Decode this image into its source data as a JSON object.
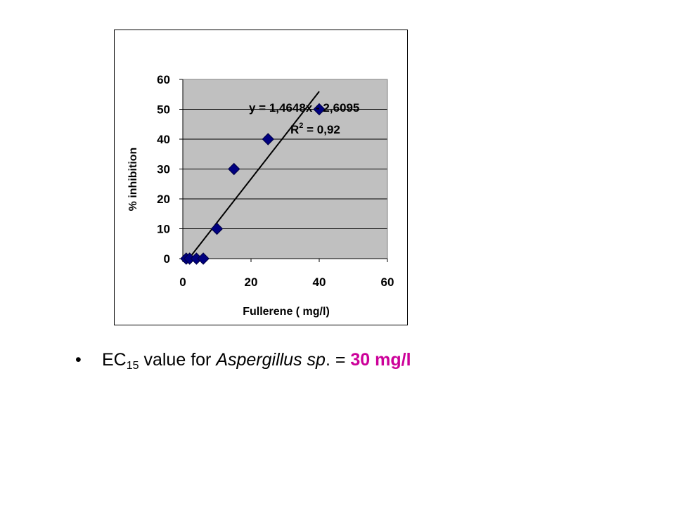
{
  "chart_data": {
    "type": "scatter",
    "xlabel": "Fullerene ( mg/l)",
    "ylabel": "% inhibition",
    "xlim": [
      0,
      60
    ],
    "ylim": [
      0,
      60
    ],
    "xticks": [
      "0",
      "20",
      "40",
      "60"
    ],
    "yticks": [
      "0",
      "10",
      "20",
      "30",
      "40",
      "50",
      "60"
    ],
    "grid": "horizontal",
    "plot_background": "#c0c0c0",
    "marker_color": "#000080",
    "marker": "diamond",
    "points": [
      {
        "x": 1,
        "y": 0
      },
      {
        "x": 2,
        "y": 0
      },
      {
        "x": 4,
        "y": 0
      },
      {
        "x": 6,
        "y": 0
      },
      {
        "x": 10,
        "y": 10
      },
      {
        "x": 15,
        "y": 30
      },
      {
        "x": 25,
        "y": 40
      },
      {
        "x": 40,
        "y": 50
      }
    ],
    "trendline": {
      "type": "linear",
      "slope": 1.4648,
      "intercept": -2.6095,
      "x_range": [
        1.78,
        40
      ],
      "color": "#000000",
      "equation_label": "y = 1,4648x - 2,6095",
      "r2_prefix": "R",
      "r2_exponent": "2",
      "r2_value": " = 0,92"
    }
  },
  "bullet": {
    "symbol": "•",
    "ec_prefix": "EC",
    "ec_subscript": "15",
    "value_for_text": " value for ",
    "organism": "Aspergillus sp",
    "organism_suffix": ". = ",
    "result": "30 mg/l",
    "result_color": "#cc0099"
  }
}
